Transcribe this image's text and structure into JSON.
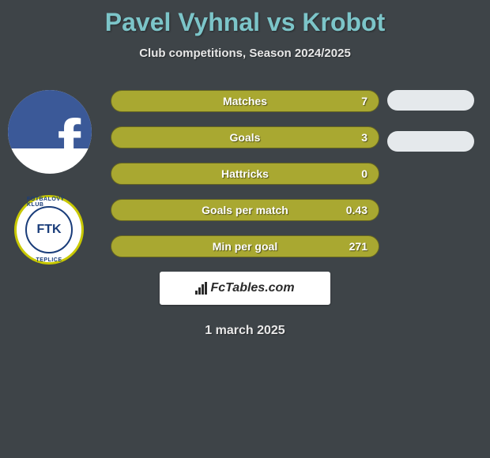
{
  "title": "Pavel Vyhnal vs Krobot",
  "subtitle": "Club competitions, Season 2024/2025",
  "date": "1 march 2025",
  "colors": {
    "background": "#3e4448",
    "title": "#7cc5c9",
    "subtitle": "#e8e8e8",
    "bar_fill": "#a9a831",
    "bar_border": "#656522",
    "bar_text": "#ffffff",
    "pill": "#e5e9ec",
    "fctables_bg": "#ffffff",
    "fctables_text": "#2a2a2a"
  },
  "stats": {
    "rows": [
      {
        "label": "Matches",
        "value": "7"
      },
      {
        "label": "Goals",
        "value": "3"
      },
      {
        "label": "Hattricks",
        "value": "0"
      },
      {
        "label": "Goals per match",
        "value": "0.43"
      },
      {
        "label": "Min per goal",
        "value": "271"
      }
    ]
  },
  "right_pills": [
    {
      "row_index": 0
    },
    {
      "row_index": 1
    }
  ],
  "badges": {
    "facebook": {
      "name": "facebook-icon",
      "color": "#3b5998"
    },
    "club": {
      "name": "teplice-badge",
      "text_center": "FTK",
      "text_top": "FOTBALOVÝ KLUB",
      "text_bottom": "TEPLICE"
    }
  },
  "branding": {
    "label": "FcTables.com",
    "icon": "bar-chart-icon"
  }
}
